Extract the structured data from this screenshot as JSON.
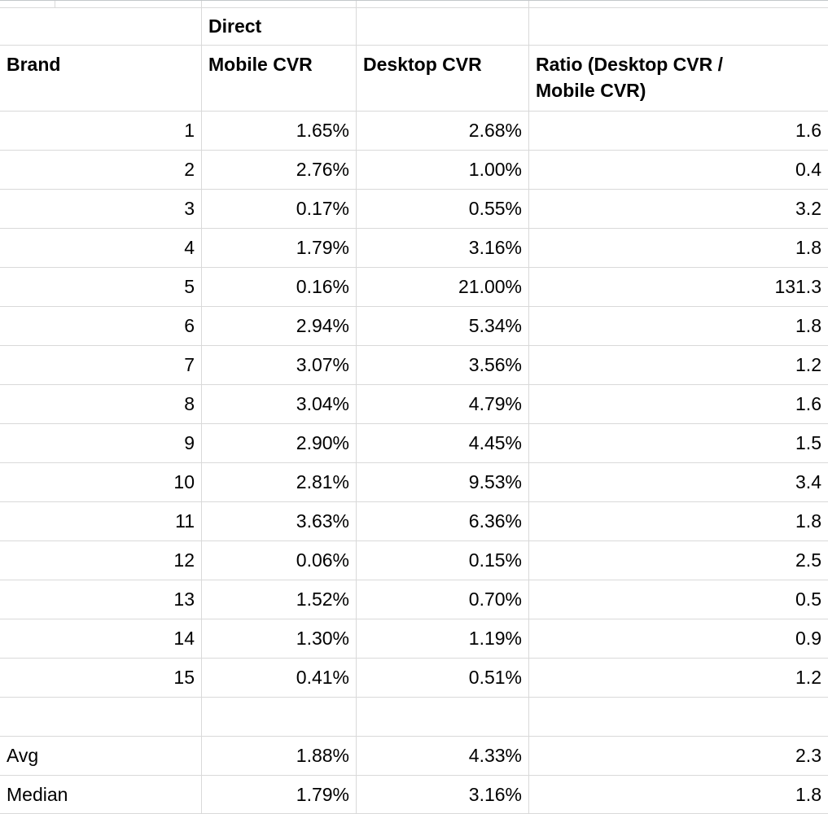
{
  "table": {
    "group_header": "Direct",
    "columns": [
      {
        "label": "Brand"
      },
      {
        "label": "Mobile CVR"
      },
      {
        "label": "Desktop CVR"
      },
      {
        "label": "Ratio (Desktop CVR / Mobile CVR)",
        "label_lines": [
          "Ratio (Desktop CVR /",
          "Mobile CVR)"
        ]
      }
    ],
    "rows": [
      {
        "brand": "1",
        "mobile_cvr": "1.65%",
        "desktop_cvr": "2.68%",
        "ratio": "1.6"
      },
      {
        "brand": "2",
        "mobile_cvr": "2.76%",
        "desktop_cvr": "1.00%",
        "ratio": "0.4"
      },
      {
        "brand": "3",
        "mobile_cvr": "0.17%",
        "desktop_cvr": "0.55%",
        "ratio": "3.2"
      },
      {
        "brand": "4",
        "mobile_cvr": "1.79%",
        "desktop_cvr": "3.16%",
        "ratio": "1.8"
      },
      {
        "brand": "5",
        "mobile_cvr": "0.16%",
        "desktop_cvr": "21.00%",
        "ratio": "131.3"
      },
      {
        "brand": "6",
        "mobile_cvr": "2.94%",
        "desktop_cvr": "5.34%",
        "ratio": "1.8"
      },
      {
        "brand": "7",
        "mobile_cvr": "3.07%",
        "desktop_cvr": "3.56%",
        "ratio": "1.2"
      },
      {
        "brand": "8",
        "mobile_cvr": "3.04%",
        "desktop_cvr": "4.79%",
        "ratio": "1.6"
      },
      {
        "brand": "9",
        "mobile_cvr": "2.90%",
        "desktop_cvr": "4.45%",
        "ratio": "1.5"
      },
      {
        "brand": "10",
        "mobile_cvr": "2.81%",
        "desktop_cvr": "9.53%",
        "ratio": "3.4"
      },
      {
        "brand": "11",
        "mobile_cvr": "3.63%",
        "desktop_cvr": "6.36%",
        "ratio": "1.8"
      },
      {
        "brand": "12",
        "mobile_cvr": "0.06%",
        "desktop_cvr": "0.15%",
        "ratio": "2.5"
      },
      {
        "brand": "13",
        "mobile_cvr": "1.52%",
        "desktop_cvr": "0.70%",
        "ratio": "0.5"
      },
      {
        "brand": "14",
        "mobile_cvr": "1.30%",
        "desktop_cvr": "1.19%",
        "ratio": "0.9"
      },
      {
        "brand": "15",
        "mobile_cvr": "0.41%",
        "desktop_cvr": "0.51%",
        "ratio": "1.2"
      }
    ],
    "summary": [
      {
        "brand": "Avg",
        "mobile_cvr": "1.88%",
        "desktop_cvr": "4.33%",
        "ratio": "2.3"
      },
      {
        "brand": "Median",
        "mobile_cvr": "1.79%",
        "desktop_cvr": "3.16%",
        "ratio": "1.8"
      }
    ]
  },
  "colors": {
    "gridline": "#d9d9d9",
    "top_edge_line": "#c3c7ca",
    "text": "#000000",
    "background": "#ffffff"
  }
}
